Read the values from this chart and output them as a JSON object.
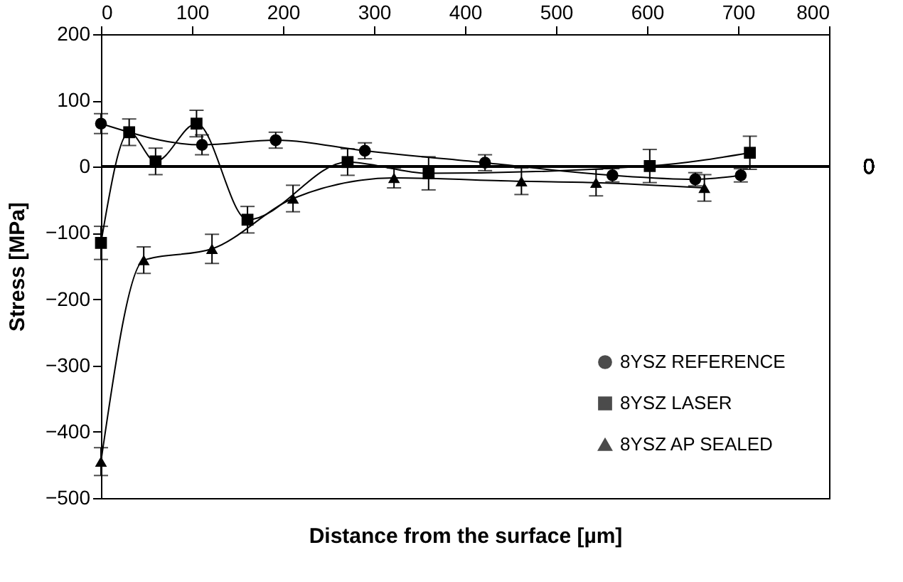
{
  "chart_data": {
    "type": "line",
    "xlabel": "Distance from the surface [µm]",
    "ylabel": "Stress [MPa]",
    "xlim": [
      0,
      800
    ],
    "xticks": [
      0,
      100,
      200,
      300,
      400,
      500,
      600,
      700,
      800
    ],
    "ylim": [
      -500,
      200
    ],
    "yticks": [
      -500,
      -400,
      -300,
      -200,
      -100,
      0,
      100,
      200
    ],
    "grid": false,
    "legend": "bottom right",
    "line_style": "solid",
    "ref_lines": [
      {
        "axis": "y",
        "value": 0,
        "label": "0"
      }
    ],
    "series": [
      {
        "name": "8YSZ REFERENCE",
        "color": "#000000",
        "marker": "circle",
        "x": [
          0,
          111,
          192,
          290,
          422,
          562,
          653,
          703
        ],
        "values": [
          65,
          33,
          40,
          24,
          6,
          -13,
          -19,
          -13
        ],
        "errors": [
          15,
          15,
          12,
          12,
          12,
          10,
          10,
          10
        ]
      },
      {
        "name": "8YSZ LASER",
        "color": "#000000",
        "marker": "square",
        "x": [
          0,
          31,
          60,
          105,
          161,
          271,
          360,
          603,
          713
        ],
        "values": [
          -115,
          52,
          8,
          65,
          -80,
          7,
          -10,
          1,
          21
        ],
        "errors": [
          25,
          20,
          20,
          20,
          20,
          20,
          25,
          25,
          25
        ]
      },
      {
        "name": "8YSZ AP SEALED",
        "color": "#000000",
        "marker": "triangle",
        "x": [
          0,
          47,
          122,
          211,
          322,
          462,
          544,
          663
        ],
        "values": [
          -445,
          -141,
          -124,
          -48,
          -17,
          -22,
          -24,
          -32
        ],
        "errors": [
          21,
          20,
          22,
          20,
          15,
          20,
          20,
          20
        ]
      }
    ]
  }
}
